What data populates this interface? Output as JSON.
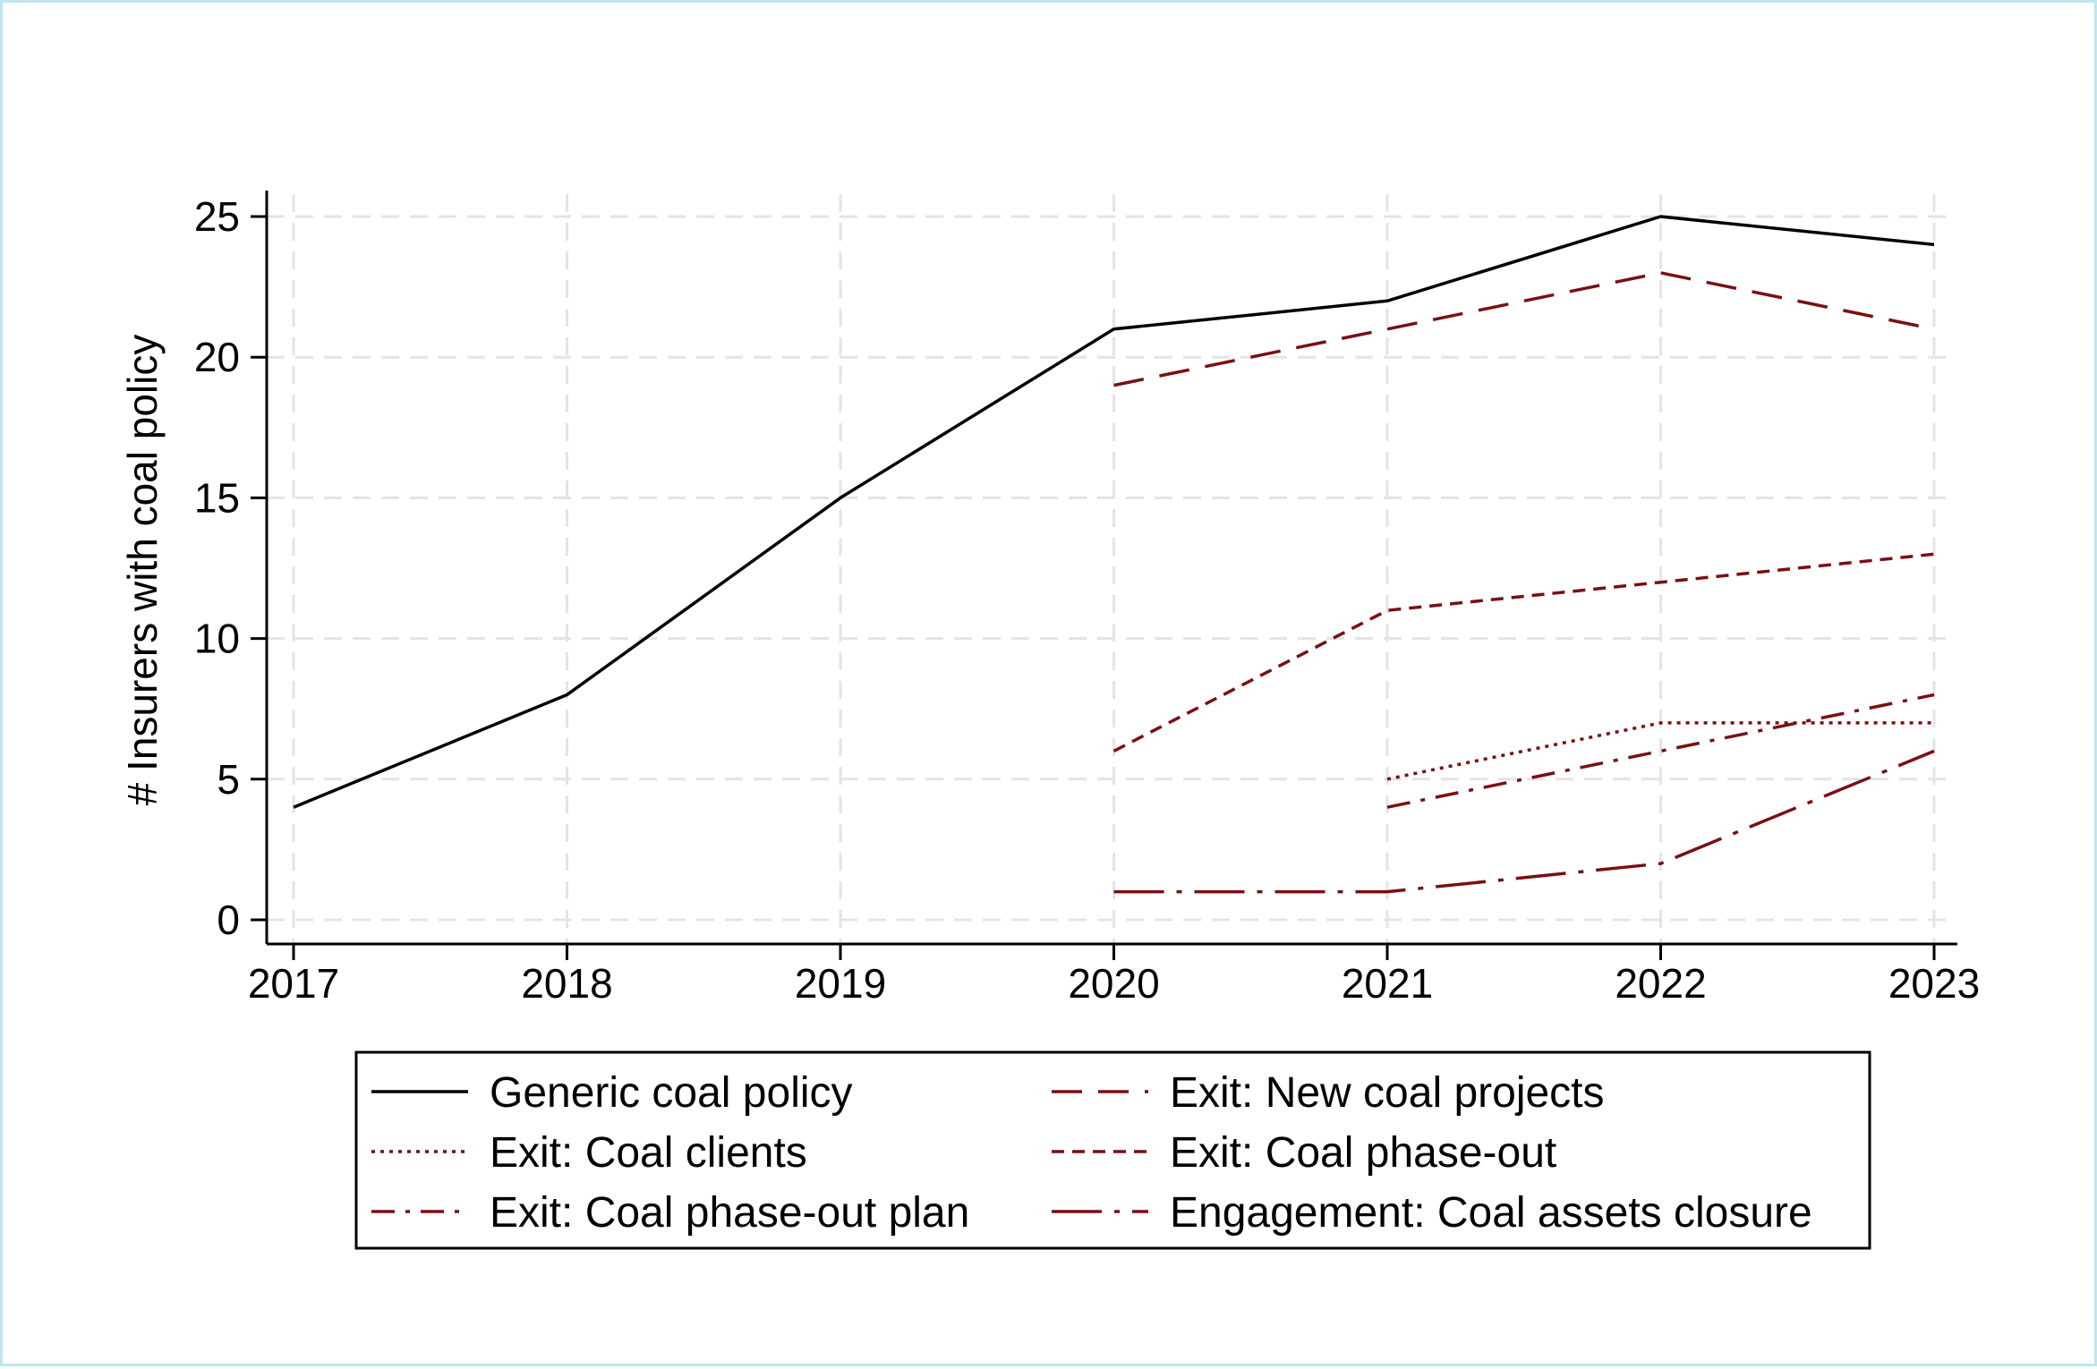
{
  "chart_data": {
    "type": "line",
    "title": "",
    "xlabel": "",
    "ylabel": "# Insurers with coal policy",
    "x": [
      2017,
      2018,
      2019,
      2020,
      2021,
      2022,
      2023
    ],
    "xlim": [
      2017,
      2023
    ],
    "ylim": [
      0,
      25
    ],
    "yticks": [
      0,
      5,
      10,
      15,
      20,
      25
    ],
    "grid": true,
    "legend_position": "bottom",
    "series": [
      {
        "name": "Generic coal policy",
        "color": "#000000",
        "dash": "solid",
        "points": [
          [
            2017,
            4
          ],
          [
            2018,
            8
          ],
          [
            2019,
            15
          ],
          [
            2020,
            21
          ],
          [
            2021,
            22
          ],
          [
            2022,
            25
          ],
          [
            2023,
            24
          ]
        ]
      },
      {
        "name": "Exit: New coal projects",
        "color": "#7a0f12",
        "dash": "longdash",
        "points": [
          [
            2020,
            19
          ],
          [
            2021,
            21
          ],
          [
            2022,
            23
          ],
          [
            2023,
            21
          ]
        ]
      },
      {
        "name": "Exit: Coal clients",
        "color": "#7a0f12",
        "dash": "dot",
        "points": [
          [
            2021,
            5
          ],
          [
            2022,
            7
          ],
          [
            2023,
            7
          ]
        ]
      },
      {
        "name": "Exit: Coal phase-out",
        "color": "#7a0f12",
        "dash": "shortdash",
        "points": [
          [
            2020,
            6
          ],
          [
            2021,
            11
          ],
          [
            2022,
            12
          ],
          [
            2023,
            13
          ]
        ]
      },
      {
        "name": "Exit: Coal phase-out plan",
        "color": "#7a0f12",
        "dash": "dashdot",
        "points": [
          [
            2021,
            4
          ],
          [
            2022,
            6
          ],
          [
            2023,
            8
          ]
        ]
      },
      {
        "name": "Engagement: Coal assets closure",
        "color": "#7a0f12",
        "dash": "longdashdot",
        "points": [
          [
            2020,
            1
          ],
          [
            2021,
            1
          ],
          [
            2022,
            2
          ],
          [
            2023,
            6
          ]
        ]
      }
    ]
  }
}
